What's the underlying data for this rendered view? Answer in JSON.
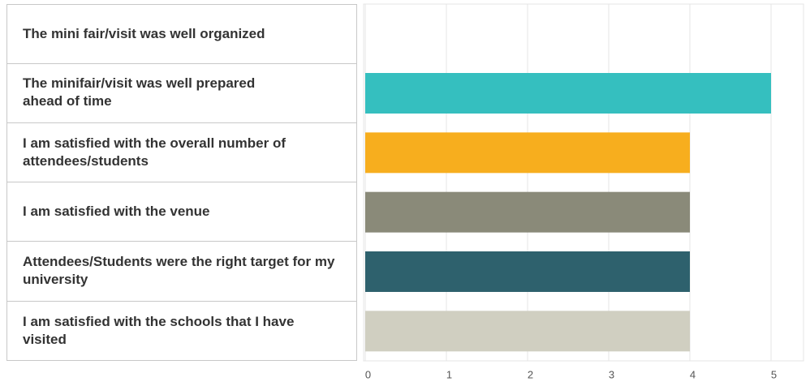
{
  "chart_data": {
    "type": "bar",
    "orientation": "horizontal",
    "categories": [
      "The mini fair/visit was well organized",
      "The minifair/visit was well prepared ahead of time",
      "I am satisfied with the overall number of attendees/students",
      "I am satisfied with the venue",
      "Attendees/Students were the right target for my university",
      "I am satisfied with the schools that I have visited"
    ],
    "values": [
      0,
      5,
      4,
      4,
      4,
      4
    ],
    "colors": [
      "#35bfbf",
      "#35bfbf",
      "#f7ae1e",
      "#8a8a79",
      "#2e616d",
      "#d0cfc1"
    ],
    "xlim": [
      0,
      5.4
    ],
    "xticks": [
      0,
      1,
      2,
      3,
      4,
      5
    ],
    "grid": true
  }
}
